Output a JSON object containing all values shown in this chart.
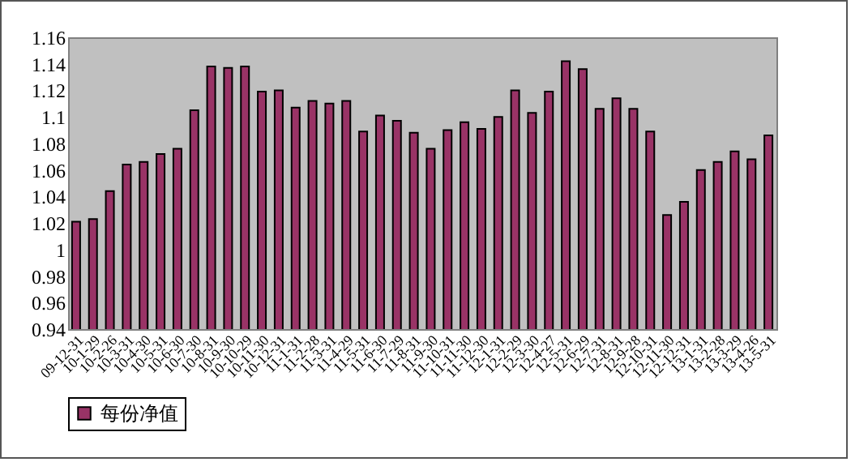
{
  "chart_data": {
    "type": "bar",
    "categories": [
      "09-12-31",
      "10-1-29",
      "10-2-26",
      "10-3-31",
      "10-4-30",
      "10-5-31",
      "10-6-30",
      "10-7-30",
      "10-8-31",
      "10-9-30",
      "10-10-29",
      "10-11-30",
      "10-12-31",
      "11-1-31",
      "11-2-28",
      "11-3-31",
      "11-4-29",
      "11-5-31",
      "11-6-30",
      "11-7-29",
      "11-8-31",
      "11-9-30",
      "11-10-31",
      "11-11-30",
      "11-12-30",
      "12-1-31",
      "12-2-29",
      "12-3-30",
      "12-4-27",
      "12-5-31",
      "12-6-29",
      "12-7-31",
      "12-8-31",
      "12-9-28",
      "12-10-31",
      "12-11-30",
      "12-12-31",
      "13-1-31",
      "13-2-28",
      "13-3-29",
      "13-4-26",
      "13-5-31"
    ],
    "series": [
      {
        "name": "每份净值",
        "color": "#993366",
        "values": [
          1.021,
          1.023,
          1.044,
          1.064,
          1.066,
          1.072,
          1.076,
          1.105,
          1.138,
          1.137,
          1.138,
          1.119,
          1.12,
          1.107,
          1.112,
          1.11,
          1.112,
          1.089,
          1.101,
          1.097,
          1.088,
          1.076,
          1.09,
          1.096,
          1.091,
          1.1,
          1.12,
          1.103,
          1.119,
          1.142,
          1.136,
          1.106,
          1.114,
          1.106,
          1.089,
          1.026,
          1.036,
          1.06,
          1.066,
          1.074,
          1.068,
          1.086
        ]
      }
    ],
    "ylim": [
      0.94,
      1.16
    ],
    "yticks": [
      0.94,
      0.96,
      0.98,
      1,
      1.02,
      1.04,
      1.06,
      1.08,
      1.1,
      1.12,
      1.14,
      1.16
    ],
    "grid": false,
    "legend": "bottom"
  }
}
